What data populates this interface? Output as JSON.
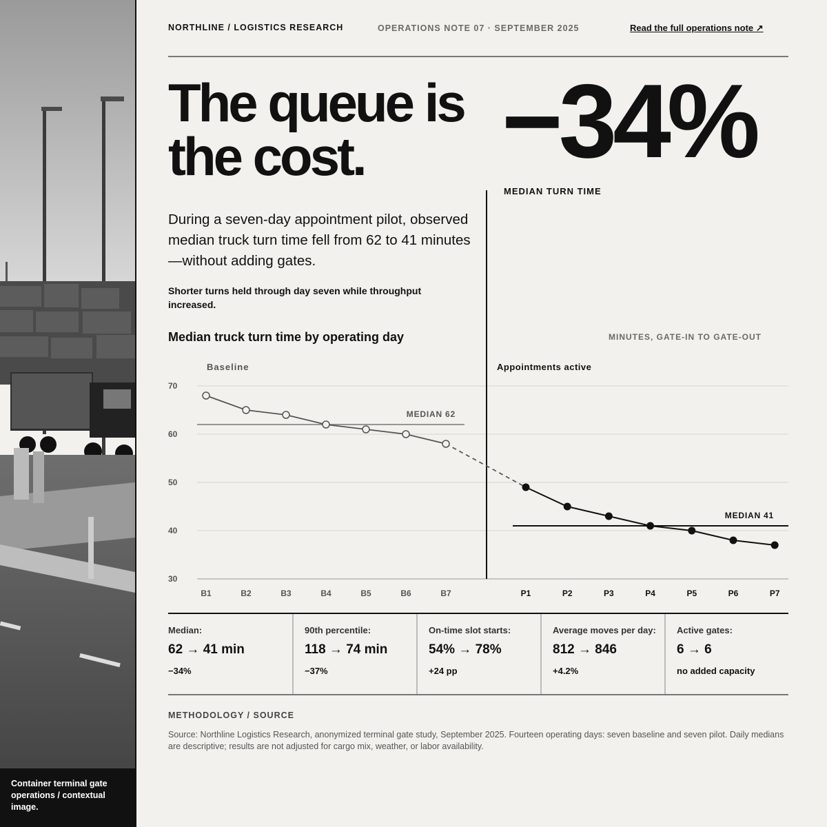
{
  "photo": {
    "caption": "Container terminal gate operations / contextual image."
  },
  "header": {
    "brand": "NORTHLINE / LOGISTICS RESEARCH",
    "note": "OPERATIONS NOTE 07 · SEPTEMBER 2025",
    "cta": "Read the full operations note ↗"
  },
  "hero": {
    "headline": "The queue is the cost.",
    "big_stat": "−34%",
    "stat_label": "MEDIAN TURN TIME",
    "lede": "During a seven-day appointment pilot, observed median truck turn time fell from 62 to 41 minutes—without adding gates.",
    "sub": "Shorter turns held through day seven while throughput increased."
  },
  "chart_data": {
    "type": "line",
    "title": "Median truck turn time by operating day",
    "ylabel": "MINUTES, GATE-IN TO GATE-OUT",
    "ylim": [
      30,
      70
    ],
    "yticks": [
      30,
      40,
      50,
      60,
      70
    ],
    "grid": true,
    "series": [
      {
        "name": "Baseline",
        "x": [
          "B1",
          "B2",
          "B3",
          "B4",
          "B5",
          "B6",
          "B7"
        ],
        "values": [
          68,
          65,
          64,
          62,
          61,
          60,
          58
        ],
        "marker": "open",
        "color": "#555555"
      },
      {
        "name": "Appointments active",
        "x": [
          "P1",
          "P2",
          "P3",
          "P4",
          "P5",
          "P6",
          "P7"
        ],
        "values": [
          49,
          45,
          43,
          41,
          40,
          38,
          37
        ],
        "marker": "filled",
        "color": "#111111"
      }
    ],
    "reference_lines": [
      {
        "label": "MEDIAN 62",
        "value": 62,
        "segment": "baseline"
      },
      {
        "label": "MEDIAN 41",
        "value": 41,
        "segment": "pilot"
      }
    ]
  },
  "stats": [
    {
      "label": "Median:",
      "value": "62 → 41 min",
      "change": "−34%"
    },
    {
      "label": "90th percentile:",
      "value": "118 → 74 min",
      "change": "−37%"
    },
    {
      "label": "On-time slot starts:",
      "value": "54% → 78%",
      "change": "+24 pp"
    },
    {
      "label": "Average moves per day:",
      "value": "812 → 846",
      "change": "+4.2%"
    },
    {
      "label": "Active gates:",
      "value": "6 → 6",
      "change": "no added capacity"
    }
  ],
  "methodology": {
    "title": "METHODOLOGY / SOURCE",
    "text": "Source: Northline Logistics Research, anonymized terminal gate study, September 2025. Fourteen operating days: seven baseline and seven pilot. Daily medians are descriptive; results are not adjusted for cargo mix, weather, or labor availability."
  }
}
